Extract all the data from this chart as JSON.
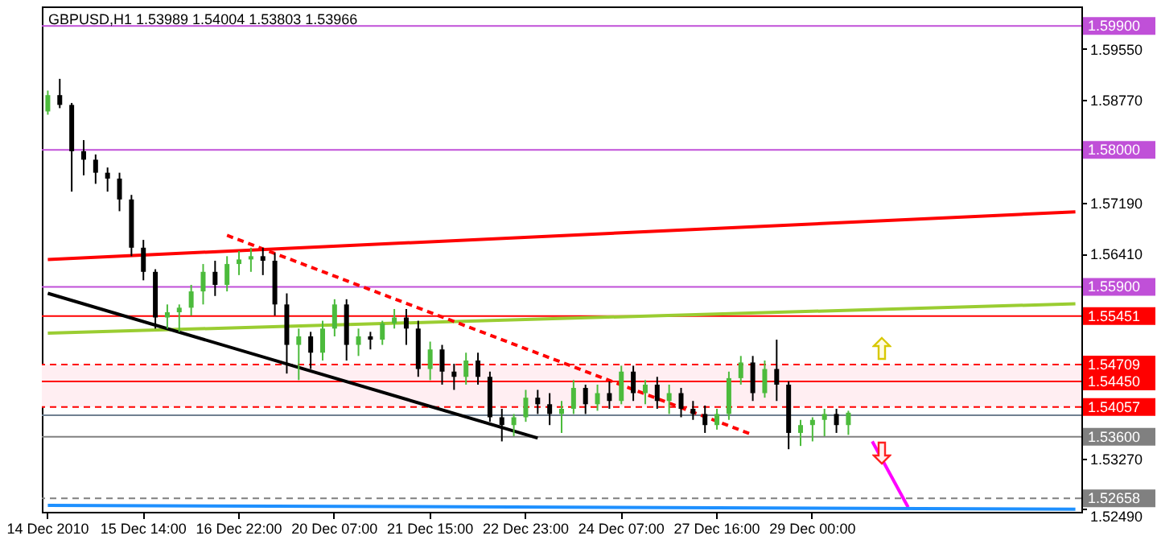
{
  "chart_data": {
    "type": "candlestick",
    "title": "GBPUSD,H1  1.53989 1.54004 1.53803 1.53966",
    "categories": [
      "14 Dec 2010",
      null,
      null,
      null,
      null,
      null,
      null,
      null,
      "15 Dec 14:00",
      null,
      null,
      null,
      null,
      null,
      null,
      null,
      "16 Dec 22:00",
      null,
      null,
      null,
      null,
      null,
      null,
      null,
      "20 Dec 07:00",
      null,
      null,
      null,
      null,
      null,
      null,
      null,
      "21 Dec 15:00",
      null,
      null,
      null,
      null,
      null,
      null,
      null,
      "22 Dec 23:00",
      null,
      null,
      null,
      null,
      null,
      null,
      null,
      "24 Dec 07:00",
      null,
      null,
      null,
      null,
      null,
      null,
      null,
      "27 Dec 16:00",
      null,
      null,
      null,
      null,
      null,
      null,
      null,
      "29 Dec 00:00",
      null,
      null,
      null,
      null,
      null,
      null,
      null,
      null,
      null,
      null,
      null,
      null,
      null,
      null,
      null,
      null,
      null,
      null,
      null,
      null,
      null,
      null
    ],
    "ohlc": [
      [
        1.5859,
        1.5891,
        1.5854,
        1.5884
      ],
      [
        1.5884,
        1.5909,
        1.5864,
        1.5869
      ],
      [
        1.5869,
        1.5872,
        1.5736,
        1.5798
      ],
      [
        1.5798,
        1.5815,
        1.5761,
        1.5785
      ],
      [
        1.5785,
        1.5793,
        1.5748,
        1.5765
      ],
      [
        1.5765,
        1.5773,
        1.5736,
        1.5756
      ],
      [
        1.5756,
        1.5765,
        1.5706,
        1.5724
      ],
      [
        1.5724,
        1.5731,
        1.5637,
        1.565
      ],
      [
        1.565,
        1.5662,
        1.56,
        1.5613
      ],
      [
        1.5613,
        1.5617,
        1.5526,
        1.5543
      ],
      [
        1.5543,
        1.5563,
        1.5526,
        1.5551
      ],
      [
        1.5551,
        1.5563,
        1.5521,
        1.5558
      ],
      [
        1.5558,
        1.5593,
        1.5546,
        1.5583
      ],
      [
        1.5583,
        1.5625,
        1.5563,
        1.5613
      ],
      [
        1.5613,
        1.563,
        1.5576,
        1.5593
      ],
      [
        1.5593,
        1.5637,
        1.5583,
        1.5625
      ],
      [
        1.5625,
        1.5645,
        1.5608,
        1.5632
      ],
      [
        1.5632,
        1.565,
        1.5613,
        1.5637
      ],
      [
        1.5637,
        1.565,
        1.5608,
        1.563
      ],
      [
        1.563,
        1.5642,
        1.5546,
        1.5563
      ],
      [
        1.5563,
        1.558,
        1.5457,
        1.5501
      ],
      [
        1.5501,
        1.5526,
        1.5447,
        1.5514
      ],
      [
        1.5514,
        1.5521,
        1.5464,
        1.5489
      ],
      [
        1.5489,
        1.5538,
        1.5477,
        1.5526
      ],
      [
        1.5526,
        1.5571,
        1.5514,
        1.5563
      ],
      [
        1.5563,
        1.5571,
        1.5477,
        1.5501
      ],
      [
        1.5501,
        1.5526,
        1.5484,
        1.5514
      ],
      [
        1.5514,
        1.5521,
        1.5494,
        1.5509
      ],
      [
        1.5509,
        1.5538,
        1.5501,
        1.5534
      ],
      [
        1.5534,
        1.5556,
        1.5526,
        1.5543
      ],
      [
        1.5543,
        1.5556,
        1.5501,
        1.5526
      ],
      [
        1.5526,
        1.5538,
        1.5452,
        1.5464
      ],
      [
        1.5464,
        1.5506,
        1.5447,
        1.5494
      ],
      [
        1.5494,
        1.5501,
        1.544,
        1.546
      ],
      [
        1.546,
        1.5472,
        1.5432,
        1.5452
      ],
      [
        1.5452,
        1.5489,
        1.544,
        1.5477
      ],
      [
        1.5477,
        1.5489,
        1.544,
        1.5452
      ],
      [
        1.5452,
        1.546,
        1.5383,
        1.539
      ],
      [
        1.539,
        1.5403,
        1.5353,
        1.5378
      ],
      [
        1.5378,
        1.5395,
        1.5361,
        1.539
      ],
      [
        1.539,
        1.5432,
        1.5383,
        1.542
      ],
      [
        1.542,
        1.5432,
        1.5395,
        1.541
      ],
      [
        1.541,
        1.5427,
        1.5378,
        1.5395
      ],
      [
        1.5395,
        1.5415,
        1.5366,
        1.5403
      ],
      [
        1.5403,
        1.5447,
        1.5395,
        1.5435
      ],
      [
        1.5435,
        1.544,
        1.5395,
        1.541
      ],
      [
        1.541,
        1.544,
        1.54,
        1.5427
      ],
      [
        1.5427,
        1.5445,
        1.5403,
        1.5415
      ],
      [
        1.5415,
        1.5469,
        1.541,
        1.546
      ],
      [
        1.546,
        1.5469,
        1.5415,
        1.5427
      ],
      [
        1.5427,
        1.5447,
        1.541,
        1.544
      ],
      [
        1.544,
        1.5452,
        1.5403,
        1.5415
      ],
      [
        1.5415,
        1.544,
        1.5395,
        1.5427
      ],
      [
        1.5427,
        1.5435,
        1.539,
        1.5403
      ],
      [
        1.5403,
        1.5415,
        1.5386,
        1.5395
      ],
      [
        1.5395,
        1.5408,
        1.5366,
        1.5378
      ],
      [
        1.5378,
        1.5403,
        1.5371,
        1.5395
      ],
      [
        1.5395,
        1.546,
        1.5386,
        1.545
      ],
      [
        1.545,
        1.5484,
        1.544,
        1.5474
      ],
      [
        1.5474,
        1.5484,
        1.5415,
        1.5427
      ],
      [
        1.5427,
        1.5477,
        1.542,
        1.5464
      ],
      [
        1.5464,
        1.5509,
        1.5415,
        1.544
      ],
      [
        1.544,
        1.5445,
        1.5341,
        1.5366
      ],
      [
        1.5366,
        1.5386,
        1.5346,
        1.5378
      ],
      [
        1.5378,
        1.539,
        1.5353,
        1.5386
      ],
      [
        1.5386,
        1.5403,
        1.5361,
        1.5395
      ],
      [
        1.5395,
        1.5403,
        1.5366,
        1.5378
      ],
      [
        1.5378,
        1.54,
        1.5363,
        1.5397
      ],
      null,
      null,
      null,
      null,
      null,
      null,
      null,
      null,
      null,
      null,
      null,
      null,
      null,
      null,
      null,
      null,
      null,
      null,
      null
    ],
    "colors": [
      "#4cbb3c",
      "#000000",
      "#000000",
      "#000000",
      "#000000",
      "#000000",
      "#000000",
      "#000000",
      "#000000",
      "#000000",
      "#4cbb3c",
      "#4cbb3c",
      "#4cbb3c",
      "#4cbb3c",
      "#000000",
      "#4cbb3c",
      "#4cbb3c",
      "#4cbb3c",
      "#000000",
      "#000000",
      "#000000",
      "#4cbb3c",
      "#000000",
      "#4cbb3c",
      "#4cbb3c",
      "#000000",
      "#4cbb3c",
      "#000000",
      "#4cbb3c",
      "#4cbb3c",
      "#000000",
      "#000000",
      "#4cbb3c",
      "#000000",
      "#000000",
      "#4cbb3c",
      "#000000",
      "#000000",
      "#000000",
      "#4cbb3c",
      "#4cbb3c",
      "#000000",
      "#000000",
      "#4cbb3c",
      "#4cbb3c",
      "#000000",
      "#4cbb3c",
      "#000000",
      "#4cbb3c",
      "#000000",
      "#4cbb3c",
      "#000000",
      "#4cbb3c",
      "#000000",
      "#000000",
      "#000000",
      "#4cbb3c",
      "#4cbb3c",
      "#4cbb3c",
      "#000000",
      "#4cbb3c",
      "#000000",
      "#000000",
      "#4cbb3c",
      "#4cbb3c",
      "#4cbb3c",
      "#000000",
      "#4cbb3c",
      null,
      null,
      null,
      null,
      null,
      null,
      null,
      null,
      null,
      null,
      null,
      null,
      null,
      null,
      null,
      null,
      null,
      null,
      null
    ],
    "series": [
      {
        "type": "line",
        "color": "#ff0000",
        "values": [
          1.5632,
          null,
          null,
          null,
          null,
          null,
          null,
          null,
          null,
          null,
          null,
          null,
          null,
          null,
          null,
          null,
          null,
          null,
          null,
          null,
          null,
          null,
          null,
          null,
          null,
          null,
          null,
          null,
          null,
          null,
          null,
          null,
          null,
          null,
          null,
          null,
          null,
          null,
          null,
          null,
          null,
          null,
          null,
          null,
          null,
          null,
          null,
          null,
          null,
          null,
          null,
          null,
          null,
          null,
          null,
          null,
          null,
          null,
          null,
          null,
          null,
          null,
          null,
          null,
          null,
          null,
          null,
          null,
          null,
          null,
          null,
          null,
          null,
          null,
          null,
          null,
          null,
          null,
          null,
          null,
          null,
          null,
          null,
          null,
          null,
          null,
          1.5705
        ]
      },
      {
        "type": "line",
        "color": "#9acd32",
        "values": [
          1.5519,
          null,
          null,
          null,
          null,
          null,
          null,
          null,
          null,
          null,
          null,
          null,
          null,
          null,
          null,
          null,
          null,
          null,
          null,
          null,
          null,
          null,
          null,
          null,
          null,
          null,
          null,
          null,
          null,
          null,
          null,
          null,
          null,
          null,
          null,
          null,
          null,
          null,
          null,
          null,
          null,
          null,
          null,
          null,
          null,
          null,
          null,
          null,
          null,
          null,
          null,
          null,
          null,
          null,
          null,
          null,
          null,
          null,
          null,
          null,
          null,
          null,
          null,
          null,
          null,
          null,
          null,
          null,
          null,
          null,
          null,
          null,
          null,
          null,
          null,
          null,
          null,
          null,
          null,
          null,
          null,
          null,
          null,
          null,
          null,
          null,
          1.5564
        ]
      },
      {
        "type": "line",
        "color": "#000000",
        "values": [
          1.558,
          null,
          null,
          null,
          null,
          null,
          null,
          null,
          null,
          null,
          null,
          null,
          null,
          null,
          null,
          null,
          null,
          null,
          null,
          null,
          null,
          null,
          null,
          null,
          null,
          null,
          null,
          null,
          null,
          null,
          null,
          null,
          null,
          null,
          null,
          null,
          null,
          null,
          null,
          null,
          null,
          1.5358,
          null,
          null,
          null,
          null,
          null,
          null,
          null,
          null,
          null,
          null,
          null,
          null,
          null,
          null,
          null,
          null,
          null,
          null,
          null,
          null,
          null,
          null,
          null,
          null,
          null,
          null,
          null,
          null,
          null,
          null,
          null,
          null,
          null,
          null,
          null,
          null,
          null,
          null,
          null,
          null,
          null,
          null,
          null,
          null,
          null
        ]
      },
      {
        "type": "line",
        "color": "#ff0000",
        "line_style": "dashed",
        "values": [
          null,
          null,
          null,
          null,
          null,
          null,
          null,
          null,
          null,
          null,
          null,
          null,
          null,
          null,
          null,
          1.5669,
          null,
          null,
          null,
          null,
          null,
          null,
          null,
          null,
          null,
          null,
          null,
          null,
          null,
          null,
          null,
          null,
          null,
          null,
          null,
          null,
          null,
          null,
          null,
          null,
          null,
          null,
          null,
          null,
          null,
          null,
          null,
          null,
          null,
          null,
          null,
          null,
          null,
          null,
          null,
          null,
          null,
          null,
          null,
          1.5363,
          null,
          null,
          null,
          null,
          null,
          null,
          null,
          null,
          null,
          null,
          null,
          null,
          null,
          null,
          null,
          null,
          null,
          null,
          null,
          null,
          null,
          null,
          null,
          null,
          null,
          null,
          null
        ]
      },
      {
        "type": "line",
        "color": "#ff00ff",
        "values": [
          null,
          null,
          null,
          null,
          null,
          null,
          null,
          null,
          null,
          null,
          null,
          null,
          null,
          null,
          null,
          null,
          null,
          null,
          null,
          null,
          null,
          null,
          null,
          null,
          null,
          null,
          null,
          null,
          null,
          null,
          null,
          null,
          null,
          null,
          null,
          null,
          null,
          null,
          null,
          null,
          null,
          null,
          null,
          null,
          null,
          null,
          null,
          null,
          null,
          null,
          null,
          null,
          null,
          null,
          null,
          null,
          null,
          null,
          null,
          null,
          null,
          null,
          null,
          null,
          null,
          null,
          null,
          null,
          null,
          1.5353,
          null,
          null,
          1.5252,
          null,
          null,
          null,
          null,
          null,
          null,
          null,
          null,
          null,
          null,
          null,
          null,
          null,
          null
        ]
      },
      {
        "type": "line",
        "color": "#1e90ff",
        "values": [
          1.5255,
          null,
          null,
          null,
          null,
          null,
          null,
          null,
          null,
          null,
          null,
          null,
          null,
          null,
          null,
          null,
          null,
          null,
          null,
          null,
          null,
          null,
          null,
          null,
          null,
          null,
          null,
          null,
          null,
          null,
          null,
          null,
          null,
          null,
          null,
          null,
          null,
          null,
          null,
          null,
          null,
          null,
          null,
          null,
          null,
          null,
          null,
          null,
          null,
          null,
          null,
          null,
          null,
          null,
          null,
          null,
          null,
          null,
          null,
          null,
          null,
          null,
          null,
          null,
          null,
          null,
          null,
          null,
          null,
          null,
          null,
          null,
          null,
          null,
          null,
          null,
          null,
          null,
          null,
          null,
          null,
          null,
          null,
          null,
          null,
          null,
          1.5249
        ]
      }
    ],
    "ylim": [
      1.5245,
      1.602
    ],
    "yticks": [
      {
        "value": 1.5955,
        "label": "1.59550"
      },
      {
        "value": 1.5877,
        "label": "1.58770"
      },
      {
        "value": 1.5719,
        "label": "1.57190"
      },
      {
        "value": 1.5641,
        "label": "1.56410"
      },
      {
        "value": 1.5327,
        "label": "1.53270"
      },
      {
        "value": 1.5249,
        "label": "1.52490"
      }
    ],
    "ref_lines": [
      {
        "axis": "y",
        "value": 1.599,
        "label": "1.59900",
        "color": "#c050d8"
      },
      {
        "axis": "y",
        "value": 1.58,
        "label": "1.58000",
        "color": "#c050d8"
      },
      {
        "axis": "y",
        "value": 1.559,
        "label": "1.55900",
        "color": "#c050d8"
      },
      {
        "axis": "y",
        "value": 1.55451,
        "label": "1.55451",
        "color": "#ff0000"
      },
      {
        "axis": "y",
        "value": 1.54709,
        "label": "1.54709",
        "color": "#ff0000",
        "line_style": "dashed"
      },
      {
        "axis": "y",
        "value": 1.5445,
        "label": "1.54450",
        "color": "#ff0000"
      },
      {
        "axis": "y",
        "value": 1.54057,
        "label": "1.54057",
        "color": "#ff0000",
        "line_style": "dashed"
      },
      {
        "axis": "y",
        "value": 1.5393,
        "label": null,
        "color": "#708090"
      },
      {
        "axis": "y",
        "value": 1.536,
        "label": "1.53600",
        "color": "#808080"
      },
      {
        "axis": "y",
        "value": 1.52658,
        "label": "1.52658",
        "color": "#808080",
        "line_style": "dashed"
      }
    ],
    "bands": [
      {
        "axis": "y",
        "from": 1.54057,
        "to": 1.54709,
        "label": null,
        "color": "#ffeef2"
      }
    ]
  }
}
